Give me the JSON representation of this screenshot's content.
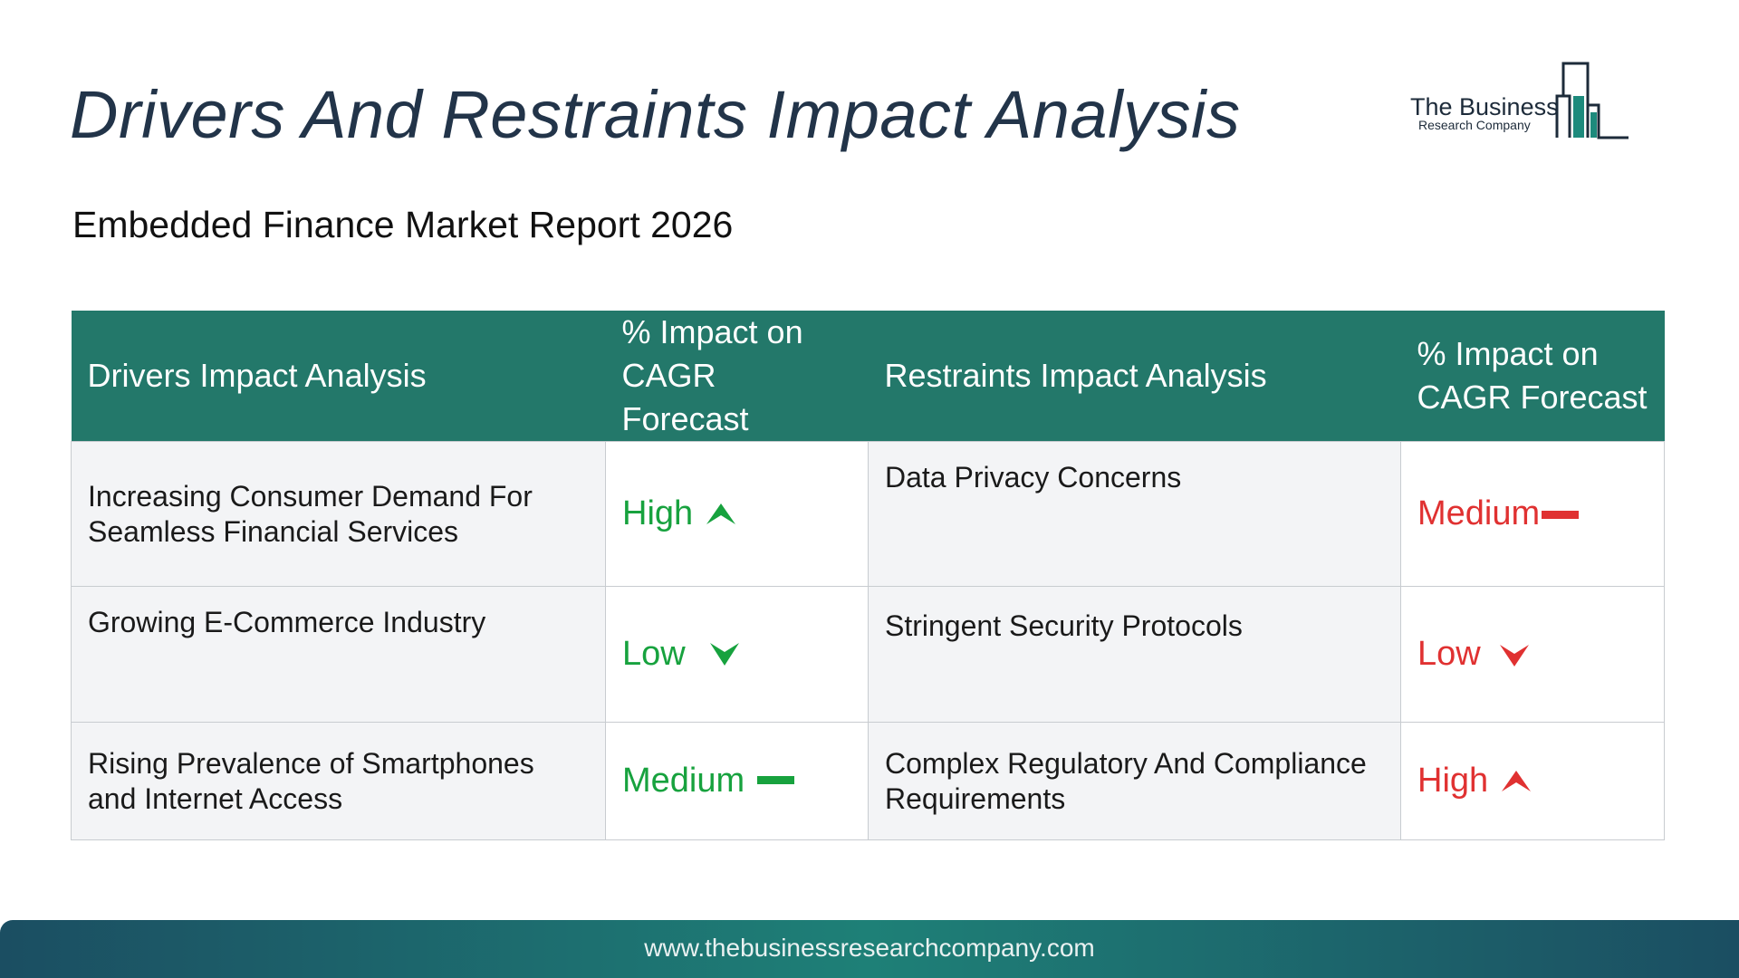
{
  "header": {
    "title": "Drivers And Restraints Impact Analysis",
    "subtitle": "Embedded Finance Market Report 2026"
  },
  "logo": {
    "name": "The Business",
    "tagline": "Research Company",
    "icon": "bar-chart-building-icon",
    "color": "#1d8a7c"
  },
  "table": {
    "headers": {
      "drivers": "Drivers Impact Analysis",
      "drivers_impact": "% Impact on CAGR Forecast",
      "restraints": "Restraints Impact Analysis",
      "restraints_impact": "% Impact on CAGR Forecast"
    },
    "rows": [
      {
        "driver": "Increasing Consumer Demand For Seamless Financial Services",
        "driver_rating": "High",
        "driver_icon": "arrow-up-icon",
        "restraint": "Data Privacy Concerns",
        "restraint_rating": "Medium",
        "restraint_icon": "dash-icon"
      },
      {
        "driver": "Growing E-Commerce Industry",
        "driver_rating": "Low",
        "driver_icon": "arrow-down-icon",
        "restraint": "Stringent Security Protocols",
        "restraint_rating": "Low",
        "restraint_icon": "arrow-down-icon"
      },
      {
        "driver": "Rising Prevalence of Smartphones and Internet Access",
        "driver_rating": "Medium",
        "driver_icon": "dash-icon",
        "restraint": "Complex Regulatory And Compliance Requirements",
        "restraint_rating": "High",
        "restraint_icon": "arrow-up-icon"
      }
    ]
  },
  "colors": {
    "header_bg": "#23786a",
    "driver_rating": "#17a23e",
    "restraint_rating": "#e03131",
    "title": "#223449"
  },
  "footer": {
    "url": "www.thebusinessresearchcompany.com"
  }
}
